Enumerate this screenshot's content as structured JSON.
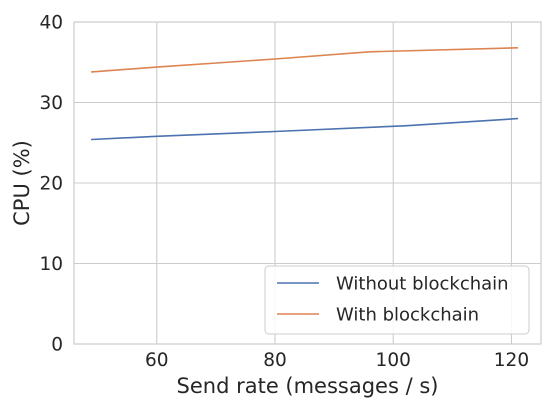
{
  "chart_data": {
    "type": "line",
    "xlabel": "Send rate (messages / s)",
    "ylabel": "CPU (%)",
    "xlim": [
      46,
      125
    ],
    "ylim": [
      0,
      40
    ],
    "xticks": [
      60,
      80,
      100,
      120
    ],
    "yticks": [
      0,
      10,
      20,
      30,
      40
    ],
    "grid": true,
    "legend_position": "lower-right",
    "series": [
      {
        "name": "Without blockchain",
        "color": "#4c72b0",
        "x": [
          49,
          60,
          80,
          102,
          121
        ],
        "y": [
          25.4,
          25.8,
          26.4,
          27.1,
          28.0
        ]
      },
      {
        "name": "With blockchain",
        "color": "#dd8452",
        "x": [
          49,
          60,
          80,
          96,
          121
        ],
        "y": [
          33.8,
          34.4,
          35.4,
          36.3,
          36.8
        ]
      }
    ]
  }
}
